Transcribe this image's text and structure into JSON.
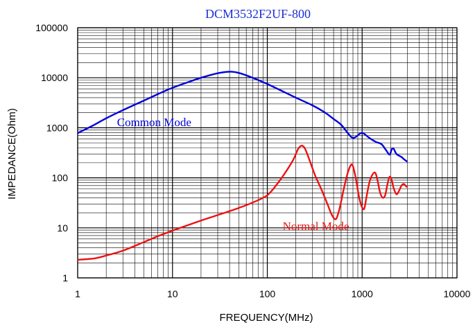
{
  "chart_data": {
    "type": "line",
    "title": "DCM3532F2UF-800",
    "xlabel": "FREQUENCY(MHz)",
    "ylabel": "IMPEDANCE(Ohm)",
    "x_scale": "log",
    "y_scale": "log",
    "xlim": [
      1,
      10000
    ],
    "ylim": [
      1,
      100000
    ],
    "grid": true,
    "x_tick_labels": [
      "1",
      "10",
      "100",
      "1000",
      "10000"
    ],
    "y_tick_labels": [
      "1",
      "10",
      "100",
      "1000",
      "10000",
      "100000"
    ],
    "series": [
      {
        "name": "Common Mode",
        "color": "#0000dd",
        "label_at": [
          2.6,
          1300
        ],
        "points": [
          [
            1,
            780
          ],
          [
            1.5,
            1150
          ],
          [
            2,
            1550
          ],
          [
            3,
            2250
          ],
          [
            5,
            3500
          ],
          [
            7,
            4700
          ],
          [
            10,
            6300
          ],
          [
            15,
            8300
          ],
          [
            20,
            10000
          ],
          [
            30,
            12300
          ],
          [
            40,
            13200
          ],
          [
            50,
            12500
          ],
          [
            70,
            10000
          ],
          [
            100,
            7500
          ],
          [
            150,
            5200
          ],
          [
            200,
            4000
          ],
          [
            300,
            2800
          ],
          [
            400,
            2050
          ],
          [
            500,
            1500
          ],
          [
            600,
            1150
          ],
          [
            700,
            800
          ],
          [
            780,
            640
          ],
          [
            850,
            650
          ],
          [
            950,
            770
          ],
          [
            1000,
            790
          ],
          [
            1050,
            760
          ],
          [
            1200,
            620
          ],
          [
            1400,
            520
          ],
          [
            1600,
            470
          ],
          [
            1800,
            350
          ],
          [
            1950,
            290
          ],
          [
            2050,
            370
          ],
          [
            2150,
            380
          ],
          [
            2300,
            300
          ],
          [
            2600,
            260
          ],
          [
            2800,
            230
          ],
          [
            3000,
            210
          ]
        ]
      },
      {
        "name": "Normal Mode",
        "color": "#ee1111",
        "label_at": [
          145,
          11
        ],
        "points": [
          [
            1,
            2.3
          ],
          [
            1.5,
            2.45
          ],
          [
            2,
            2.8
          ],
          [
            3,
            3.5
          ],
          [
            5,
            5.2
          ],
          [
            7,
            6.8
          ],
          [
            10,
            8.8
          ],
          [
            20,
            14
          ],
          [
            30,
            18
          ],
          [
            50,
            25
          ],
          [
            70,
            32
          ],
          [
            100,
            45
          ],
          [
            130,
            80
          ],
          [
            160,
            140
          ],
          [
            190,
            240
          ],
          [
            210,
            370
          ],
          [
            230,
            440
          ],
          [
            250,
            380
          ],
          [
            280,
            220
          ],
          [
            320,
            110
          ],
          [
            370,
            60
          ],
          [
            430,
            30
          ],
          [
            480,
            18
          ],
          [
            530,
            15
          ],
          [
            580,
            25
          ],
          [
            640,
            60
          ],
          [
            700,
            120
          ],
          [
            760,
            180
          ],
          [
            800,
            170
          ],
          [
            860,
            95
          ],
          [
            920,
            45
          ],
          [
            980,
            28
          ],
          [
            1050,
            24
          ],
          [
            1120,
            45
          ],
          [
            1200,
            85
          ],
          [
            1300,
            120
          ],
          [
            1380,
            125
          ],
          [
            1450,
            90
          ],
          [
            1550,
            50
          ],
          [
            1650,
            40
          ],
          [
            1750,
            45
          ],
          [
            1850,
            75
          ],
          [
            1950,
            105
          ],
          [
            2050,
            90
          ],
          [
            2150,
            62
          ],
          [
            2300,
            47
          ],
          [
            2450,
            55
          ],
          [
            2600,
            70
          ],
          [
            2750,
            75
          ],
          [
            2900,
            68
          ],
          [
            3000,
            65
          ]
        ]
      }
    ]
  }
}
